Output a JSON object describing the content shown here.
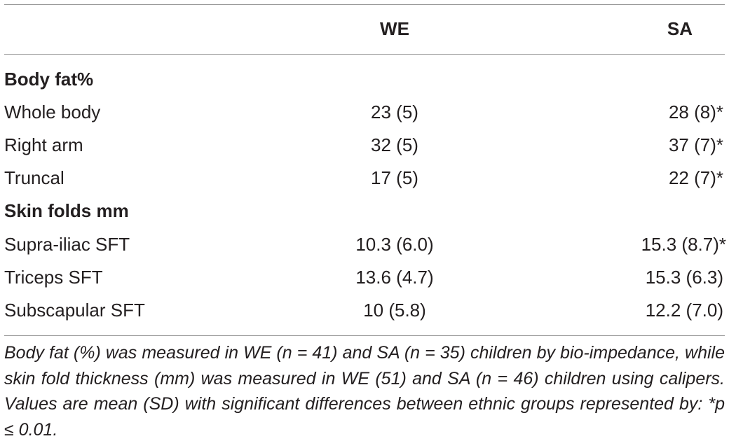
{
  "table": {
    "headers": {
      "we": "WE",
      "sa": "SA"
    },
    "sections": [
      {
        "title": "Body fat%",
        "rows": [
          {
            "label": "Whole body",
            "we": "23 (5)",
            "sa": "28 (8)*"
          },
          {
            "label": "Right arm",
            "we": "32 (5)",
            "sa": "37 (7)*"
          },
          {
            "label": "Truncal",
            "we": "17 (5)",
            "sa": "22 (7)*"
          }
        ]
      },
      {
        "title": "Skin folds mm",
        "rows": [
          {
            "label": "Supra-iliac SFT",
            "we": "10.3 (6.0)",
            "sa": "15.3 (8.7)*"
          },
          {
            "label": "Triceps SFT",
            "we": "13.6 (4.7)",
            "sa": "15.3 (6.3)"
          },
          {
            "label": "Subscapular SFT",
            "we": "10 (5.8)",
            "sa": "12.2 (7.0)"
          }
        ]
      }
    ],
    "footnote": "Body fat (%) was measured in WE (n = 41) and SA (n = 35) children by bio-impedance, while skin fold thickness (mm) was measured in WE (51) and SA (n = 46) children using calipers. Values are mean (SD) with significant differences between ethnic groups represented by: *p ≤ 0.01."
  }
}
